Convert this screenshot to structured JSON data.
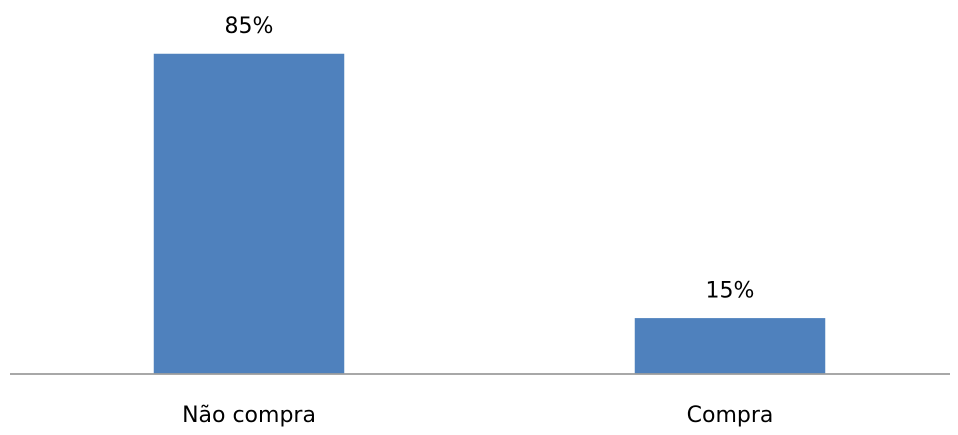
{
  "chart_data": {
    "type": "bar",
    "title": "",
    "xlabel": "",
    "ylabel": "",
    "categories": [
      "Não compra",
      "Compra"
    ],
    "values": [
      85,
      15
    ],
    "value_labels": [
      "85%",
      "15%"
    ],
    "unit": "%",
    "ylim": [
      0,
      100
    ],
    "grid": false,
    "legend": "none",
    "colors": {
      "bar": "#4f81bd",
      "axis": "#8c8c8c",
      "text": "#000000"
    }
  }
}
